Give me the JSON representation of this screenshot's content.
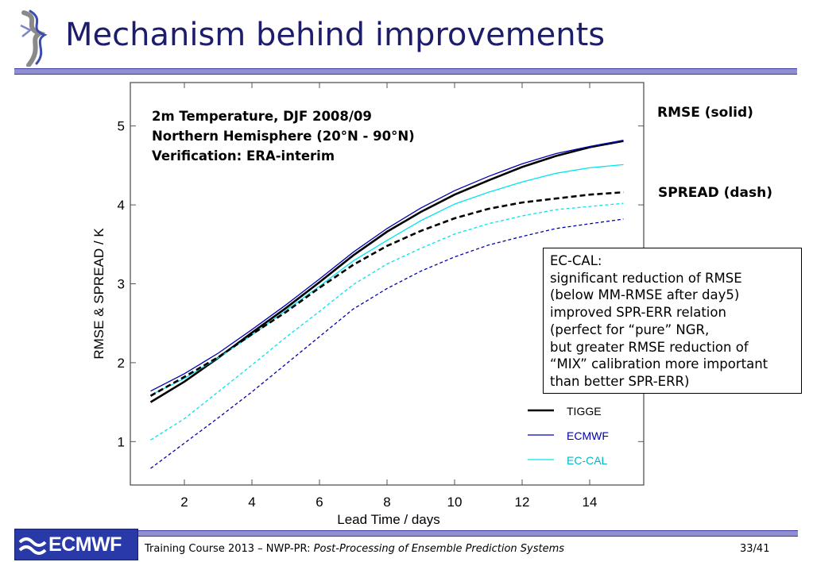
{
  "slide": {
    "title": "Mechanism behind improvements",
    "rmse_label": "RMSE (solid)",
    "spread_label": "SPREAD (dash)",
    "note_lines": [
      "EC-CAL:",
      "significant reduction of RMSE",
      "(below MM-RMSE after day5)",
      "improved SPR-ERR relation",
      "(perfect for “pure” NGR,",
      "but greater RMSE reduction of",
      "“MIX” calibration more important",
      "than better SPR-ERR)"
    ],
    "footer_logo_text": "ECMWF",
    "footer_prefix": "Training Course 2013 – NWP-PR: ",
    "footer_italic": "Post-Processing of Ensemble Prediction Systems",
    "page_number": "33/41"
  },
  "chart_data": {
    "type": "line",
    "title_lines": [
      "2m Temperature, DJF 2008/09",
      "Northern Hemisphere (20°N - 90°N)",
      "Verification: ERA-interim"
    ],
    "xlabel": "Lead Time / days",
    "ylabel": "RMSE & SPREAD / K",
    "xlim": [
      0.4,
      15.6
    ],
    "ylim": [
      0.45,
      5.55
    ],
    "xticks": [
      2,
      4,
      6,
      8,
      10,
      12,
      14
    ],
    "yticks": [
      1,
      2,
      3,
      4,
      5
    ],
    "x": [
      1,
      2,
      3,
      4,
      5,
      6,
      7,
      8,
      9,
      10,
      11,
      12,
      13,
      14,
      15
    ],
    "legend_position": "bottom-right",
    "series": [
      {
        "name": "TIGGE",
        "metric": "RMSE",
        "style": "solid",
        "color": "#000000",
        "width": 2.6,
        "values": [
          1.5,
          1.76,
          2.06,
          2.38,
          2.69,
          3.02,
          3.36,
          3.66,
          3.91,
          4.13,
          4.31,
          4.48,
          4.62,
          4.73,
          4.81
        ]
      },
      {
        "name": "ECMWF",
        "metric": "RMSE",
        "style": "solid",
        "color": "#0000b0",
        "width": 1.3,
        "values": [
          1.64,
          1.86,
          2.12,
          2.42,
          2.73,
          3.06,
          3.4,
          3.7,
          3.96,
          4.18,
          4.36,
          4.52,
          4.65,
          4.74,
          4.82
        ]
      },
      {
        "name": "EC-CAL",
        "metric": "RMSE",
        "style": "solid",
        "color": "#00e5ee",
        "width": 1.3,
        "values": [
          1.59,
          1.8,
          2.06,
          2.35,
          2.66,
          2.97,
          3.29,
          3.55,
          3.8,
          4.01,
          4.16,
          4.29,
          4.4,
          4.47,
          4.51
        ]
      },
      {
        "name": "TIGGE",
        "metric": "SPREAD",
        "style": "dash",
        "color": "#000000",
        "width": 2.6,
        "values": [
          1.58,
          1.82,
          2.07,
          2.36,
          2.64,
          2.95,
          3.24,
          3.48,
          3.67,
          3.83,
          3.95,
          4.03,
          4.08,
          4.13,
          4.16
        ]
      },
      {
        "name": "EC-CAL",
        "metric": "SPREAD",
        "style": "dash",
        "color": "#00e5ee",
        "width": 1.3,
        "values": [
          1.02,
          1.29,
          1.63,
          1.97,
          2.32,
          2.65,
          2.99,
          3.25,
          3.45,
          3.63,
          3.76,
          3.86,
          3.94,
          3.98,
          4.02
        ]
      },
      {
        "name": "ECMWF",
        "metric": "SPREAD",
        "style": "dash",
        "color": "#0000b0",
        "width": 1.3,
        "values": [
          0.66,
          0.98,
          1.3,
          1.63,
          1.98,
          2.33,
          2.68,
          2.94,
          3.16,
          3.34,
          3.49,
          3.6,
          3.7,
          3.76,
          3.82
        ]
      }
    ]
  }
}
